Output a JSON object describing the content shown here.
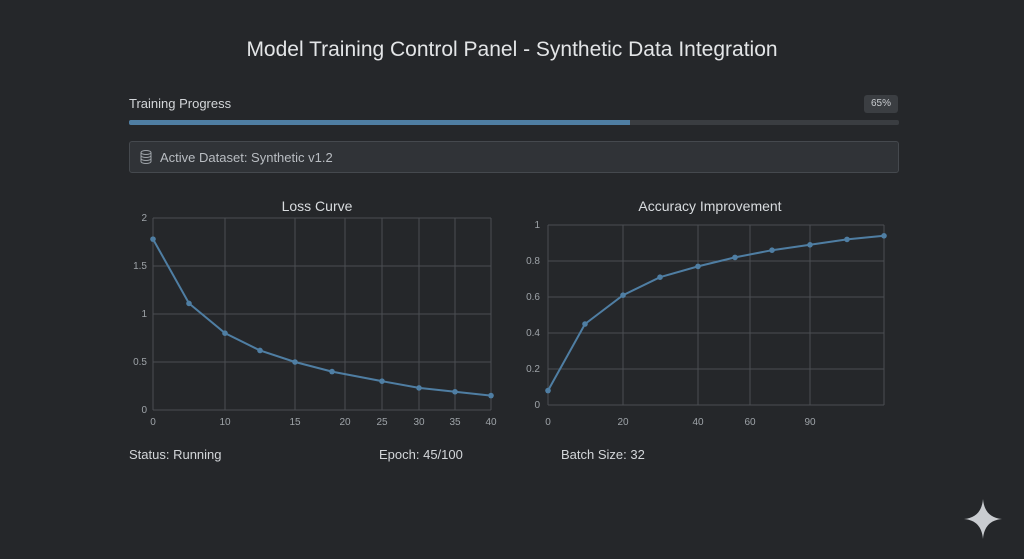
{
  "header": {
    "title": "Model Training Control Panel - Synthetic Data Integration"
  },
  "progress": {
    "label": "Training Progress",
    "percent_label": "65%",
    "value": 0.65
  },
  "dataset": {
    "icon": "database-icon",
    "text": "Active Dataset: Synthetic v1.2"
  },
  "colors": {
    "accent": "#4f7ea3",
    "background": "#25272a",
    "grid": "#4a4e52"
  },
  "chart_data": [
    {
      "type": "line",
      "title": "Loss Curve",
      "xlabel": "",
      "ylabel": "",
      "x_ticks": [
        0,
        10,
        15,
        20,
        25,
        30,
        35,
        40
      ],
      "y_ticks": [
        "0",
        "0.5",
        "1",
        "1.5",
        "2"
      ],
      "ylim": [
        0,
        2
      ],
      "grid": true,
      "series": [
        {
          "x": [
            0,
            5,
            10,
            15,
            20,
            25,
            30,
            35,
            40,
            45
          ],
          "values": [
            1.78,
            1.11,
            0.8,
            0.62,
            0.5,
            0.4,
            0.3,
            0.23,
            0.19,
            0.15
          ]
        }
      ]
    },
    {
      "type": "line",
      "title": "Accuracy Improvement",
      "xlabel": "",
      "ylabel": "",
      "x_ticks": [
        0,
        20,
        40,
        60,
        90
      ],
      "y_ticks": [
        "0",
        "0.2",
        "0.4",
        "0.6",
        "0.8",
        "1"
      ],
      "ylim": [
        0,
        1
      ],
      "grid": true,
      "series": [
        {
          "x": [
            0,
            10,
            20,
            30,
            40,
            50,
            60,
            70,
            80,
            90
          ],
          "values": [
            0.08,
            0.45,
            0.61,
            0.71,
            0.77,
            0.82,
            0.86,
            0.89,
            0.92,
            0.94
          ]
        }
      ]
    }
  ],
  "footer": {
    "status": "Status: Running",
    "epoch": "Epoch: 45/100",
    "batch": "Batch Size: 32"
  },
  "watermark": {
    "icon": "sparkle-icon"
  }
}
